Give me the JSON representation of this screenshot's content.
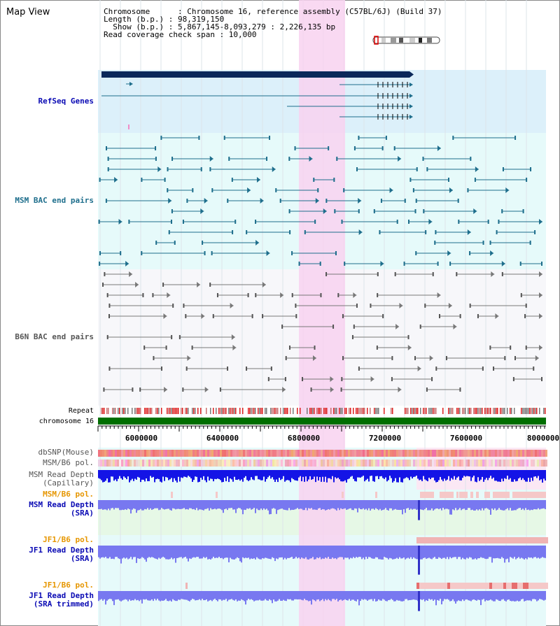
{
  "view_title": "Map View",
  "info": {
    "chromosome": "Chromosome      : Chromosome 16, reference assembly (C57BL/6J) (Build 37)",
    "length": "Length (b.p.) : 98,319,150",
    "show": "  Show (b.p.) : 5,867,145-8,093,279 : 2,226,135 bp",
    "span": "Read coverage check span : 10,000"
  },
  "tracks": {
    "refseq": "RefSeq Genes",
    "msm_bac": "MSM BAC end pairs",
    "b6n_bac": "B6N BAC end pairs",
    "repeat": "Repeat",
    "chromosome": "chromosome 16",
    "dbsnp": "dbSNP(Mouse)",
    "msm_b6_pol": "MSM/B6 pol.",
    "msm_depth_cap_1": "MSM Read Depth",
    "msm_depth_cap_2": "(Capillary)",
    "msm_b6_pol_2": "MSM/B6 pol.",
    "msm_depth_sra_1": "MSM Read Depth",
    "msm_depth_sra_2": "(SRA)",
    "jf1_b6_pol": "JF1/B6 pol.",
    "jf1_depth_sra_1": "JF1 Read Depth",
    "jf1_depth_sra_2": "(SRA)",
    "jf1_b6_pol_2": "JF1/B6 pol.",
    "jf1_depth_trim_1": "JF1 Read Depth",
    "jf1_depth_trim_2": "(SRA trimmed)"
  },
  "ruler": [
    "6000000",
    "6400000",
    "6800000",
    "7200000",
    "7600000",
    "8000000"
  ],
  "colors": {
    "refseq_bg": "#dcf0fa",
    "msm_bg": "#e6fafa",
    "highlight": "#f8d2f0",
    "msm_feature": "#1e6e8c",
    "b6n_feature": "#787878",
    "gene": "#1e6e8c",
    "gene_dark": "#0a285a",
    "depth_blue": "#1414e6",
    "depth_light": "#7878f0",
    "label_teal": "#1e6e8c",
    "label_orange": "#e69600",
    "label_navy": "#0a0ab4",
    "chrom_green": "#006e00"
  }
}
